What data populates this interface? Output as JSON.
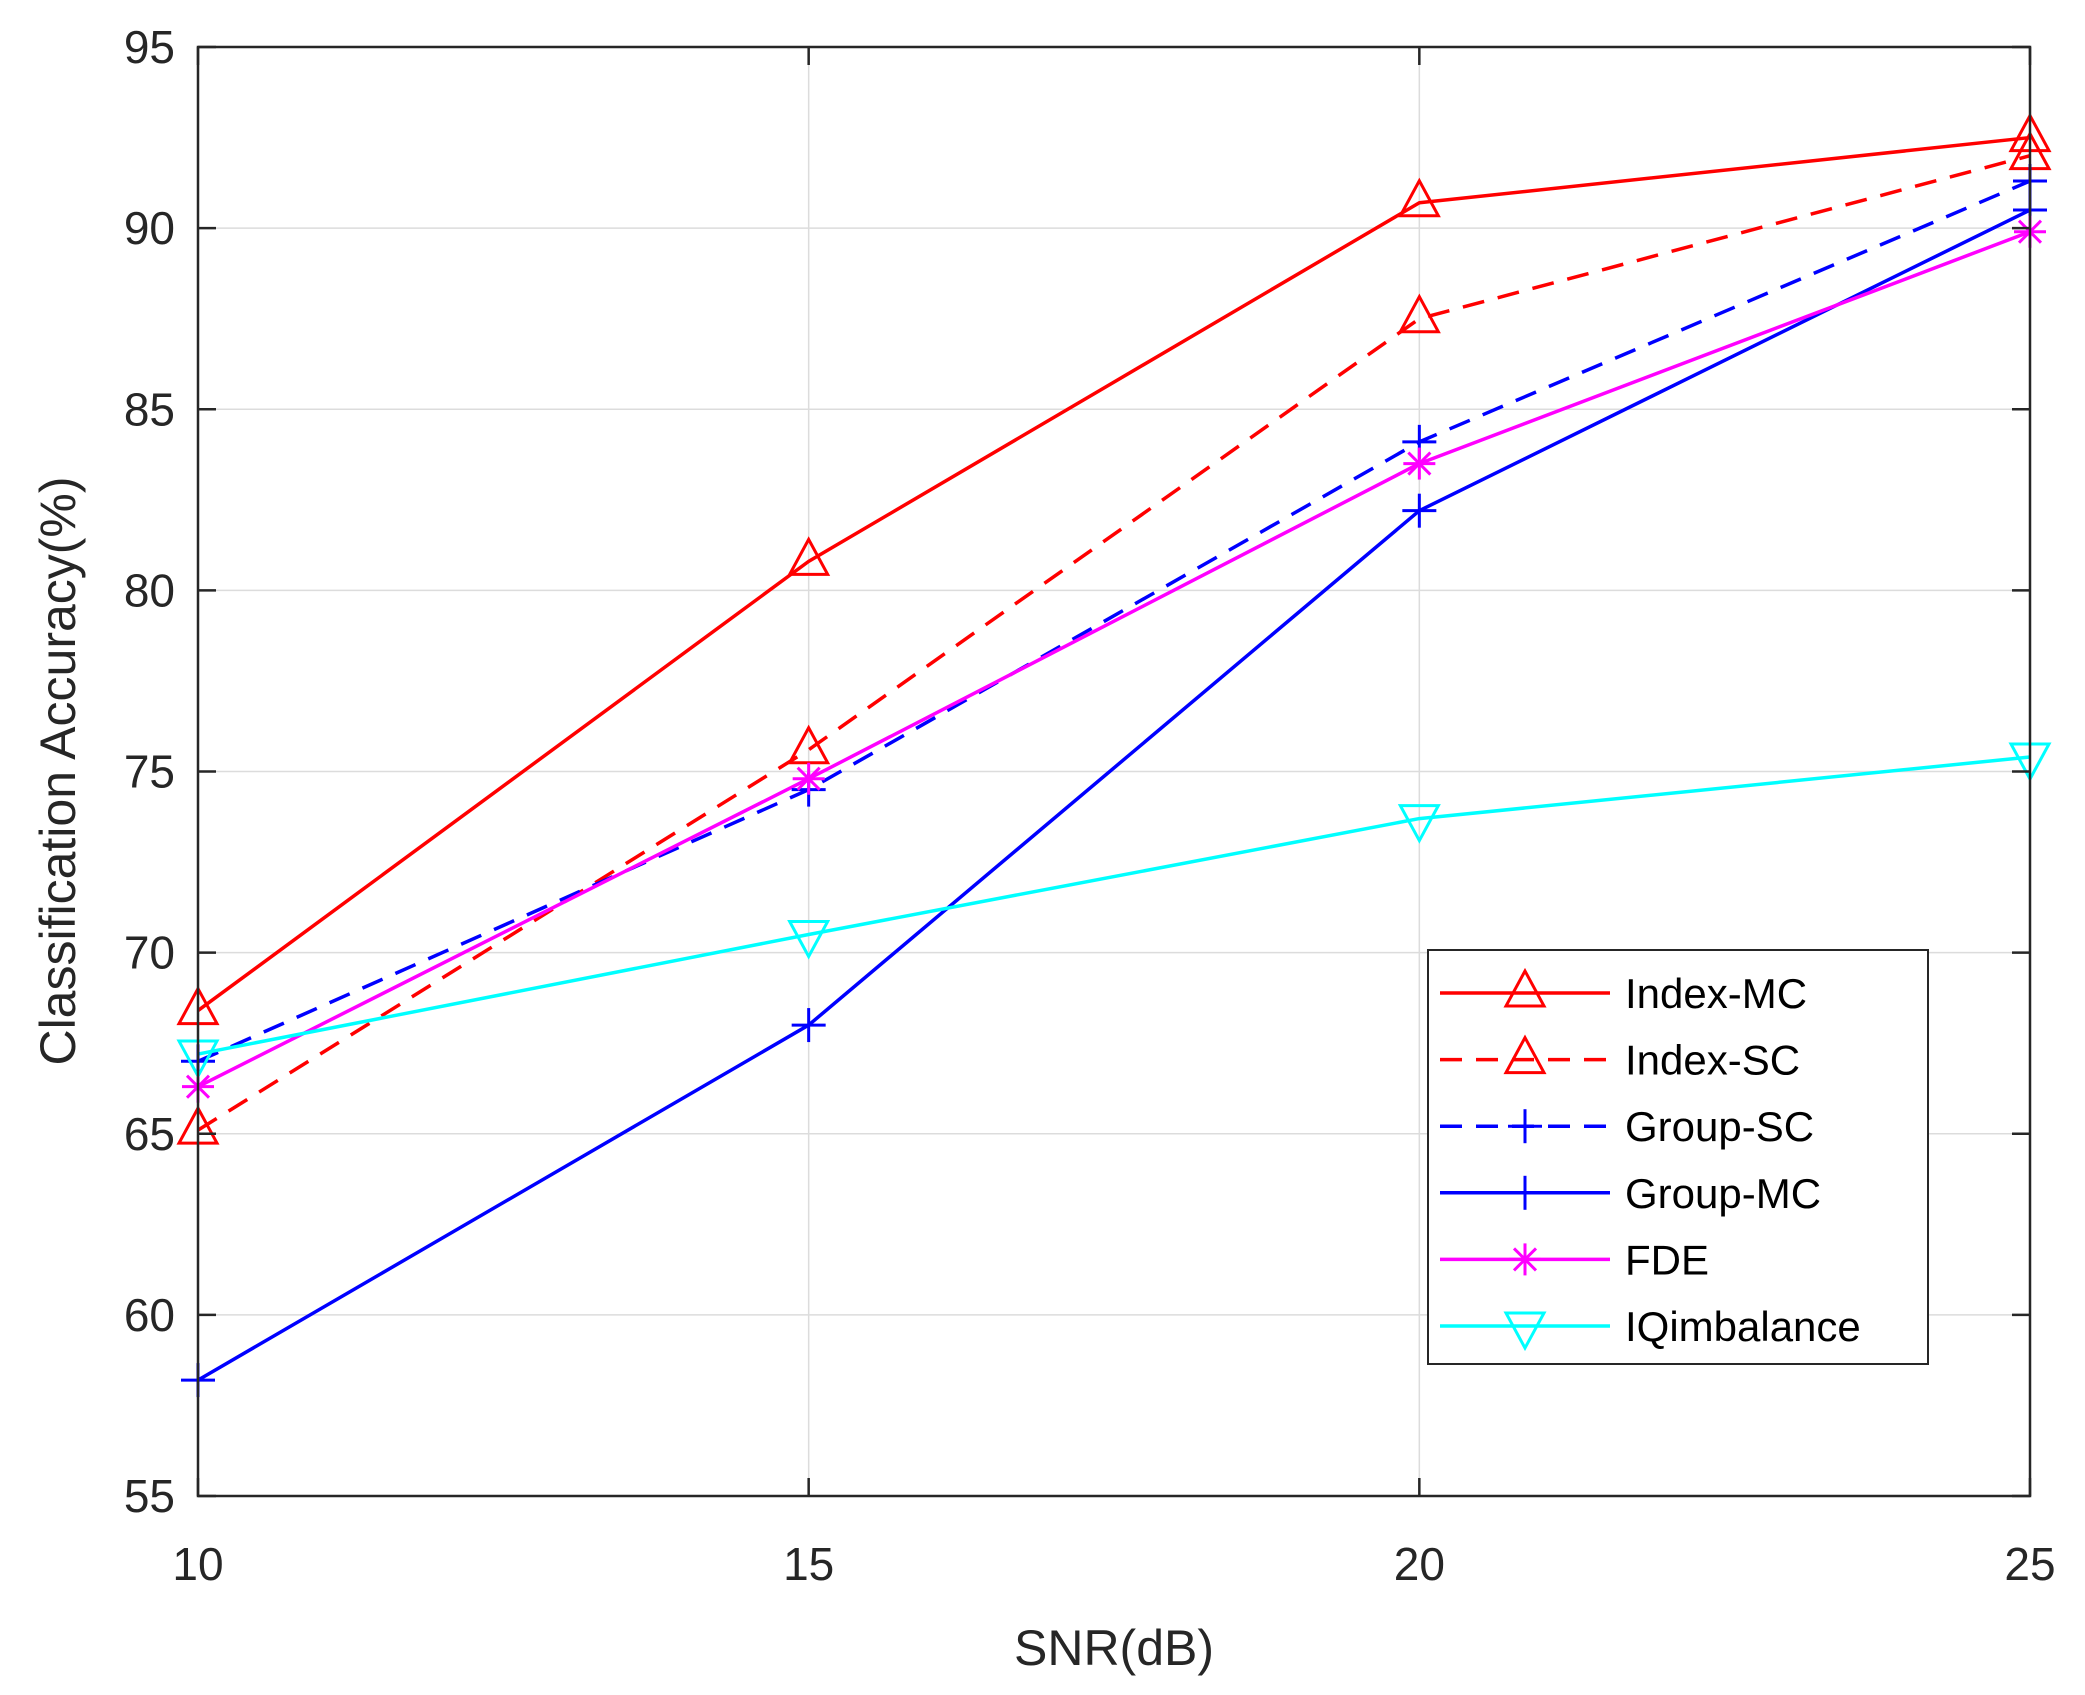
{
  "chart_data": {
    "type": "line",
    "title": "",
    "xlabel": "SNR(dB)",
    "ylabel": "Classification Accuracy(%)",
    "xlim": [
      10,
      25
    ],
    "ylim": [
      55,
      95
    ],
    "xticks": [
      10,
      15,
      20,
      25
    ],
    "yticks": [
      55,
      60,
      65,
      70,
      75,
      80,
      85,
      90,
      95
    ],
    "grid": true,
    "legend_position": "bottom-right",
    "x": [
      10,
      15,
      20,
      25
    ],
    "series": [
      {
        "name": "Index-MC",
        "values": [
          68.4,
          80.8,
          90.7,
          92.5
        ],
        "color": "#ff0000",
        "dash": "solid",
        "marker": "triangle-up"
      },
      {
        "name": "Index-SC",
        "values": [
          65.1,
          75.6,
          87.5,
          92.0
        ],
        "color": "#ff0000",
        "dash": "dashed",
        "marker": "triangle-up"
      },
      {
        "name": "Group-SC",
        "values": [
          67.0,
          74.5,
          84.1,
          91.3
        ],
        "color": "#0000ff",
        "dash": "dashed",
        "marker": "plus"
      },
      {
        "name": "Group-MC",
        "values": [
          58.2,
          68.0,
          82.2,
          90.5
        ],
        "color": "#0000ff",
        "dash": "solid",
        "marker": "plus"
      },
      {
        "name": "FDE",
        "values": [
          66.3,
          74.8,
          83.5,
          89.9
        ],
        "color": "#ff00ff",
        "dash": "solid",
        "marker": "asterisk"
      },
      {
        "name": "IQimbalance",
        "values": [
          67.2,
          70.5,
          73.7,
          75.4
        ],
        "color": "#00ffff",
        "dash": "solid",
        "marker": "triangle-down"
      }
    ]
  }
}
